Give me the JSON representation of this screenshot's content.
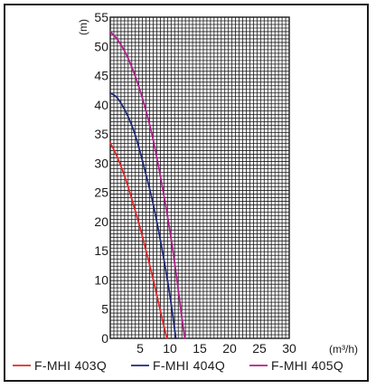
{
  "chart_data": {
    "type": "line",
    "xlabel": "(m³/h)",
    "ylabel": "(m)",
    "xlim": [
      0,
      30
    ],
    "ylim": [
      0,
      55
    ],
    "xticks": [
      "5",
      "10",
      "15",
      "20",
      "25",
      "30"
    ],
    "yticks": [
      "0",
      "5",
      "10",
      "15",
      "20",
      "25",
      "30",
      "35",
      "40",
      "45",
      "50",
      "55"
    ],
    "grid": true,
    "legend_position": "bottom",
    "series": [
      {
        "name": "F-MHI 403Q",
        "color": "#e0282c",
        "points": [
          [
            0,
            33.5
          ],
          [
            1,
            31.5
          ],
          [
            2,
            29
          ],
          [
            3,
            26
          ],
          [
            4,
            22.5
          ],
          [
            5,
            19
          ],
          [
            6,
            15
          ],
          [
            7,
            11
          ],
          [
            8,
            6.5
          ],
          [
            9,
            2
          ],
          [
            9.5,
            0
          ]
        ]
      },
      {
        "name": "F-MHI 404Q",
        "color": "#1f2a7a",
        "points": [
          [
            0,
            42
          ],
          [
            1,
            41.5
          ],
          [
            2,
            40
          ],
          [
            3,
            38
          ],
          [
            4,
            35.5
          ],
          [
            5,
            32
          ],
          [
            6,
            28
          ],
          [
            7,
            24
          ],
          [
            8,
            19
          ],
          [
            9,
            13.5
          ],
          [
            10,
            7.5
          ],
          [
            11,
            0
          ]
        ]
      },
      {
        "name": "F-MHI 405Q",
        "color": "#b0208a",
        "points": [
          [
            0,
            52.5
          ],
          [
            1,
            51.5
          ],
          [
            2,
            50
          ],
          [
            3,
            48
          ],
          [
            4,
            45.5
          ],
          [
            5,
            42.5
          ],
          [
            6,
            39
          ],
          [
            7,
            35
          ],
          [
            8,
            30
          ],
          [
            9,
            24.5
          ],
          [
            10,
            18.5
          ],
          [
            11,
            11.5
          ],
          [
            12,
            3.5
          ],
          [
            12.5,
            0
          ]
        ]
      }
    ]
  }
}
